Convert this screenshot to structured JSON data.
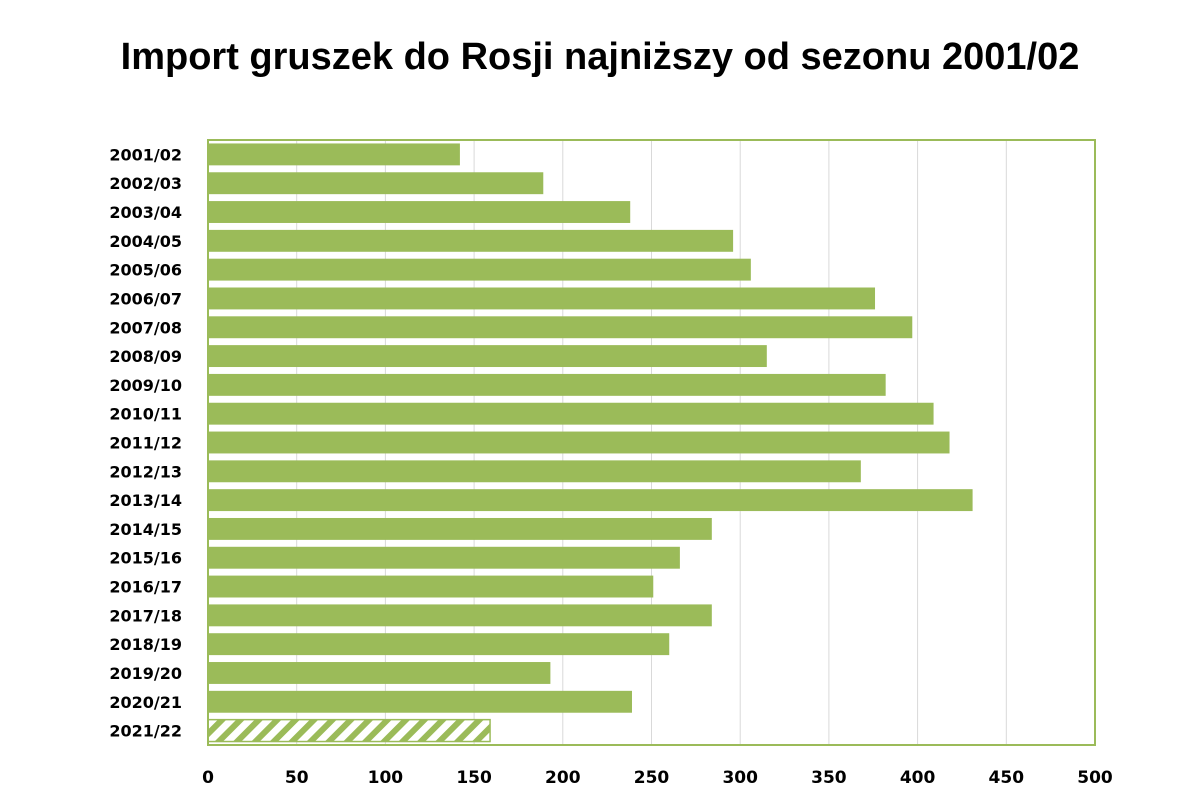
{
  "chart_data": {
    "type": "bar",
    "orientation": "horizontal",
    "title": "Import gruszek do Rosji najniższy od sezonu 2001/02",
    "categories": [
      "2001/02",
      "2002/03",
      "2003/04",
      "2004/05",
      "2005/06",
      "2006/07",
      "2007/08",
      "2008/09",
      "2009/10",
      "2010/11",
      "2011/12",
      "2012/13",
      "2013/14",
      "2014/15",
      "2015/16",
      "2016/17",
      "2017/18",
      "2018/19",
      "2019/20",
      "2020/21",
      "2021/22"
    ],
    "values": [
      142,
      189,
      238,
      296,
      306,
      376,
      397,
      315,
      382,
      409,
      418,
      368,
      431,
      284,
      266,
      251,
      284,
      260,
      193,
      239,
      159
    ],
    "estimated_last": true,
    "xlim": [
      0,
      500
    ],
    "xticks": [
      0,
      50,
      100,
      150,
      200,
      250,
      300,
      350,
      400,
      450,
      500
    ],
    "grid": "vertical",
    "bar_color": "#9bbb59",
    "border_color": "#9bbb59",
    "grid_color": "#d9d9d9"
  }
}
